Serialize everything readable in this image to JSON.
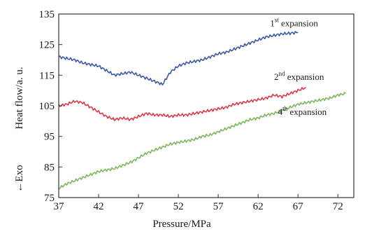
{
  "chart_data": {
    "type": "line",
    "xlabel": "Pressure/MPa",
    "ylabel_left": "←Exo",
    "ylabel": "Heat flow/a. u.",
    "xlim": [
      37,
      74
    ],
    "ylim": [
      75,
      135
    ],
    "xticks": [
      37,
      42,
      47,
      52,
      57,
      62,
      67,
      72
    ],
    "yticks": [
      75,
      85,
      95,
      105,
      115,
      125,
      135
    ],
    "grid": false,
    "series": [
      {
        "name_parts": [
          "1",
          "st",
          " expansion"
        ],
        "color": "#3a5aa8",
        "x": [
          37,
          38,
          39,
          40,
          41,
          42,
          43,
          44,
          45,
          46,
          47,
          48,
          49,
          50,
          51,
          52,
          53,
          54,
          55,
          56,
          57,
          58,
          59,
          60,
          61,
          62,
          63,
          64,
          65,
          66,
          67
        ],
        "y": [
          121,
          120.5,
          120,
          119,
          118.5,
          118,
          116.5,
          115,
          115.5,
          116,
          115,
          114,
          113,
          112,
          116,
          118,
          119,
          119.5,
          120,
          121,
          122,
          122.5,
          123.5,
          124.5,
          125.5,
          126.5,
          127.5,
          128,
          128.5,
          128.7,
          129
        ]
      },
      {
        "name_parts": [
          "2",
          "nd",
          " expansion"
        ],
        "color": "#d93a4a",
        "x": [
          37,
          38,
          39,
          40,
          41,
          42,
          43,
          44,
          45,
          46,
          47,
          48,
          49,
          50,
          51,
          52,
          53,
          54,
          55,
          56,
          57,
          58,
          59,
          60,
          61,
          62,
          63,
          64,
          65,
          66,
          67,
          68
        ],
        "y": [
          105,
          105.5,
          106.5,
          106,
          104.5,
          103,
          101.5,
          100.5,
          101,
          100.5,
          101.5,
          102.5,
          102,
          102,
          101.5,
          102,
          102,
          102.5,
          103,
          103.5,
          104,
          104.5,
          105.5,
          106,
          106.5,
          107,
          107.5,
          108.5,
          108,
          109,
          110,
          111
        ]
      },
      {
        "name_parts": [
          "4",
          "th",
          " expansion"
        ],
        "color": "#7cb85c",
        "x": [
          37,
          38,
          39,
          40,
          41,
          42,
          43,
          44,
          45,
          46,
          47,
          48,
          49,
          50,
          51,
          52,
          53,
          54,
          55,
          56,
          57,
          58,
          59,
          60,
          61,
          62,
          63,
          64,
          65,
          66,
          67,
          68,
          69,
          70,
          71,
          72,
          73
        ],
        "y": [
          78,
          79.5,
          80.5,
          81.5,
          82.5,
          83.5,
          84,
          84.5,
          85.5,
          86.5,
          88,
          89.5,
          90.5,
          91.5,
          92.5,
          93,
          93.5,
          94,
          95,
          95.5,
          96.5,
          97.5,
          98.5,
          99.5,
          100.5,
          101,
          102,
          102.5,
          103.5,
          104.5,
          105.5,
          106,
          106.5,
          107,
          107.5,
          108.5,
          109
        ]
      }
    ],
    "annotations": [
      {
        "parts": [
          "1",
          "st",
          " expansion"
        ],
        "x": 63.5,
        "y": 131
      },
      {
        "parts": [
          "2",
          "nd",
          " expansion"
        ],
        "x": 64,
        "y": 113.5
      },
      {
        "parts": [
          "4",
          "th",
          " expansion"
        ],
        "x": 64.5,
        "y": 102
      }
    ]
  }
}
